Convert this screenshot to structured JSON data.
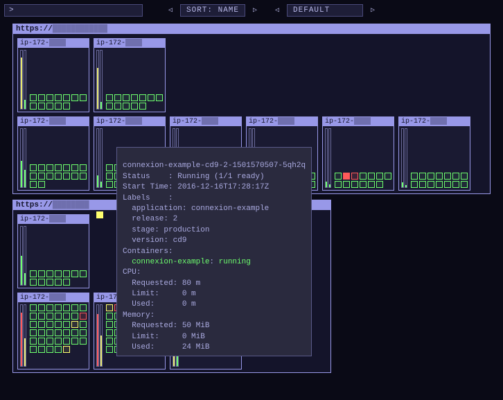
{
  "topbar": {
    "prompt": ">",
    "sort_label": "SORT: NAME",
    "default_label": "DEFAULT",
    "left_arrow": "◁",
    "right_arrow": "▷"
  },
  "cluster1_header": "https://",
  "cluster2_header": "https://",
  "node_prefix": "ip-172-",
  "tooltip": {
    "name": "connexion-example-cd9-2-1501570507-5qh2q",
    "status_label": "Status",
    "status_value": "Running (1/1 ready)",
    "starttime_label": "Start Time",
    "starttime_value": "2016-12-16T17:28:17Z",
    "labels_label": "Labels",
    "app_label": "application",
    "app_value": "connexion-example",
    "release_label": "release",
    "release_value": "2",
    "stage_label": "stage",
    "stage_value": "production",
    "version_label": "version",
    "version_value": "cd9",
    "containers_label": "Containers",
    "container_name": "connexion-example",
    "container_state": "running",
    "cpu_label": "CPU",
    "cpu_req_label": "Requested",
    "cpu_req_value": "80 m",
    "cpu_lim_label": "Limit",
    "cpu_lim_value": "0 m",
    "cpu_used_label": "Used",
    "cpu_used_value": "0 m",
    "mem_label": "Memory",
    "mem_req_label": "Requested",
    "mem_req_value": "50 MiB",
    "mem_lim_label": "Limit",
    "mem_lim_value": "0 MiB",
    "mem_used_label": "Used",
    "mem_used_value": "24 MiB"
  },
  "colors": {
    "bg": "#0a0a16",
    "panel": "#14142a",
    "border": "#9898e8",
    "green": "#6eff6e",
    "yellow": "#ffff6e",
    "red": "#ff5a5a"
  },
  "cluster1_nodes": [
    {
      "bar1_h": 88,
      "bar1_c": "#e8e86e",
      "bar2_h": 15,
      "bar2_c": "#6eff6e",
      "pods": [
        "pod-green",
        "pod-green",
        "pod-green",
        "pod-green",
        "pod-green",
        "pod-green",
        "pod-green",
        "pod-green",
        "pod-green",
        "pod-green",
        "pod-green",
        "pod-green"
      ]
    },
    {
      "bar1_h": 70,
      "bar1_c": "#e8e86e",
      "bar2_h": 12,
      "bar2_c": "#6eff6e",
      "pods": [
        "pod-green",
        "pod-green",
        "pod-green",
        "pod-green",
        "pod-green",
        "pod-green",
        "pod-green",
        "pod-green",
        "pod-green",
        "pod-green",
        "pod-green",
        "pod-green"
      ]
    }
  ],
  "cluster1_row2": [
    {
      "bar1_h": 45,
      "bar2_h": 30,
      "pods": [
        "pod-green",
        "pod-green",
        "pod-green",
        "pod-green",
        "pod-green",
        "pod-green",
        "pod-green",
        "pod-green",
        "pod-green",
        "pod-green",
        "pod-green",
        "pod-green",
        "pod-green",
        "pod-green",
        "pod-green",
        "pod-green"
      ]
    },
    {
      "bar1_h": 20,
      "bar2_h": 10,
      "pods": [
        "pod-green",
        "pod-green",
        "pod-red",
        "pod-green",
        "pod-green",
        "pod-green",
        "pod-green",
        "pod-green",
        "pod-green",
        "pod-green",
        "pod-green",
        "pod-green",
        "pod-green",
        "pod-green",
        "pod-green",
        "pod-green"
      ]
    },
    {
      "bar1_h": 15,
      "bar2_h": 8,
      "pods": [
        "pod-red",
        "pod-green",
        "pod-green",
        "pod-green",
        "pod-green",
        "pod-green"
      ]
    },
    {
      "bar1_h": 12,
      "bar2_h": 6,
      "pods": [
        "pod-green",
        "pod-green",
        "pod-green",
        "pod-red",
        "pod-green",
        "pod-green",
        "pod-green",
        "pod-green",
        "pod-green",
        "pod-green",
        "pod-green",
        "pod-green",
        "pod-green",
        "pod-green"
      ]
    },
    {
      "bar1_h": 10,
      "bar2_h": 5,
      "pods": [
        "pod-green",
        "pod-red-fill",
        "pod-red",
        "pod-green",
        "pod-green",
        "pod-green",
        "pod-green",
        "pod-green",
        "pod-green",
        "pod-green",
        "pod-green",
        "pod-green",
        "pod-green"
      ]
    },
    {
      "bar1_h": 8,
      "bar2_h": 4,
      "pods": [
        "pod-green",
        "pod-green",
        "pod-green",
        "pod-green",
        "pod-green",
        "pod-green",
        "pod-green",
        "pod-green",
        "pod-green",
        "pod-green",
        "pod-green",
        "pod-green",
        "pod-green",
        "pod-green"
      ]
    }
  ],
  "cluster2_row1": [
    {
      "bar1_h": 50,
      "bar2_h": 20,
      "pods": [
        "pod-green",
        "pod-green",
        "pod-green",
        "pod-green",
        "pod-green",
        "pod-green",
        "pod-green",
        "pod-green",
        "pod-green",
        "pod-green",
        "pod-green",
        "pod-green"
      ]
    }
  ],
  "cluster2_row2": [
    {
      "bar1_h": 88,
      "bar1_c": "#ff5a5a",
      "bar2_h": 45,
      "bar2_c": "#e8e86e",
      "pods_big": true
    },
    {
      "bar1_h": 85,
      "bar1_c": "#ff5a5a",
      "bar2_h": 50,
      "bar2_c": "#e8e86e",
      "pods_big": true
    },
    {
      "bar1_h": 40,
      "bar1_c": "#e8e86e",
      "bar2_h": 25,
      "bar2_c": "#6eff6e",
      "pods_medium": true
    }
  ]
}
